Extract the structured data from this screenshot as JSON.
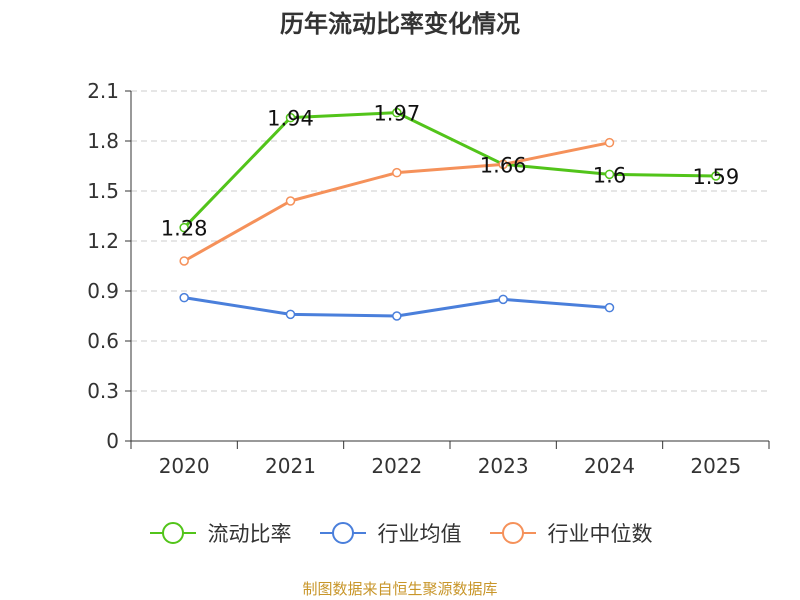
{
  "chart_data": {
    "type": "line",
    "title": "历年流动比率变化情况",
    "categories": [
      "2020",
      "2021",
      "2022",
      "2023",
      "2024",
      "2025"
    ],
    "ylim": [
      0,
      2.1
    ],
    "yticks": [
      "0",
      "0.3",
      "0.6",
      "0.9",
      "1.2",
      "1.5",
      "1.8",
      "2.1"
    ],
    "grid": true,
    "legend_position": "bottom",
    "series": [
      {
        "name": "流动比率",
        "color": "#52c41a",
        "values": [
          1.28,
          1.94,
          1.97,
          1.66,
          1.6,
          1.59
        ],
        "labels": [
          "1.28",
          "1.94",
          "1.97",
          "1.66",
          "1.6",
          "1.59"
        ]
      },
      {
        "name": "行业均值",
        "color": "#4a7fdb",
        "values": [
          0.86,
          0.76,
          0.75,
          0.85,
          0.8,
          null
        ]
      },
      {
        "name": "行业中位数",
        "color": "#f5915a",
        "values": [
          1.08,
          1.44,
          1.61,
          1.66,
          1.79,
          null
        ]
      }
    ]
  },
  "footer": {
    "source": "制图数据来自恒生聚源数据库"
  }
}
